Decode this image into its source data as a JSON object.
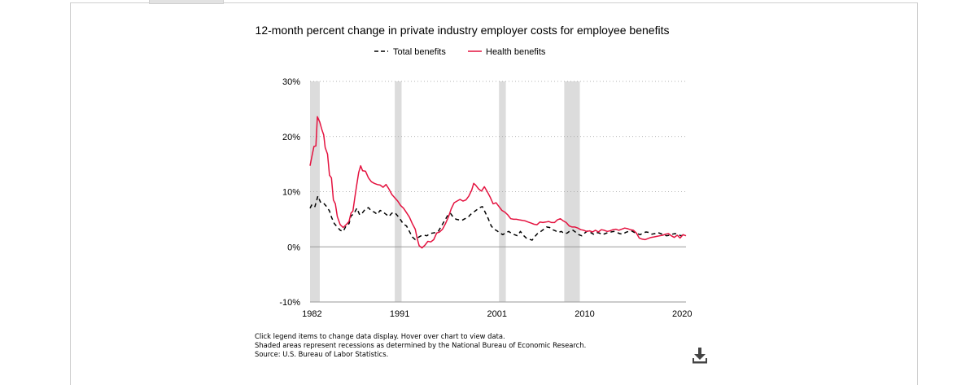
{
  "notes": [
    "Click legend items to change data display. Hover over chart to view data.",
    "Shaded areas represent recessions as determined by the National Bureau of Economic Research.",
    "Source: U.S. Bureau of Labor Statistics."
  ],
  "download": {
    "icon": "download-icon"
  },
  "chart_data": {
    "type": "line",
    "title": "12-month percent change in private industry employer costs for employee benefits",
    "xlabel": "",
    "ylabel": "",
    "xlim": [
      1981.8,
      2020.4
    ],
    "ylim": [
      -10,
      30
    ],
    "yticks": [
      -10,
      0,
      10,
      20,
      30
    ],
    "ytick_labels": [
      "-10%",
      "0%",
      "10%",
      "20%",
      "30%"
    ],
    "xticks": [
      1982,
      1991,
      2001,
      2010,
      2020
    ],
    "xtick_labels": [
      "1982",
      "1991",
      "2001",
      "2010",
      "2020"
    ],
    "grid": "horizontal-dotted",
    "legend_position": "top-center",
    "recessions": [
      [
        1981.8,
        1982.8
      ],
      [
        1990.5,
        1991.2
      ],
      [
        2001.2,
        2001.9
      ],
      [
        2007.9,
        2009.5
      ]
    ],
    "series": [
      {
        "name": "Total benefits",
        "color": "#000000",
        "style": "dashed",
        "points": [
          [
            1981.8,
            7.0
          ],
          [
            1982.0,
            7.7
          ],
          [
            1982.3,
            7.3
          ],
          [
            1982.6,
            9.2
          ],
          [
            1982.9,
            8.0
          ],
          [
            1983.2,
            7.9
          ],
          [
            1983.5,
            7.3
          ],
          [
            1983.8,
            6.5
          ],
          [
            1984.0,
            5.4
          ],
          [
            1984.3,
            4.2
          ],
          [
            1984.6,
            3.6
          ],
          [
            1984.9,
            3.0
          ],
          [
            1985.2,
            2.8
          ],
          [
            1985.5,
            3.8
          ],
          [
            1985.8,
            4.2
          ],
          [
            1986.0,
            5.6
          ],
          [
            1986.3,
            6.0
          ],
          [
            1986.6,
            7.0
          ],
          [
            1986.9,
            5.8
          ],
          [
            1987.2,
            6.2
          ],
          [
            1987.5,
            6.9
          ],
          [
            1987.8,
            7.1
          ],
          [
            1988.1,
            6.5
          ],
          [
            1988.4,
            6.3
          ],
          [
            1988.7,
            5.9
          ],
          [
            1989.0,
            6.6
          ],
          [
            1989.3,
            6.3
          ],
          [
            1989.6,
            5.9
          ],
          [
            1989.9,
            5.5
          ],
          [
            1990.2,
            6.1
          ],
          [
            1990.5,
            6.2
          ],
          [
            1990.8,
            5.6
          ],
          [
            1991.1,
            4.9
          ],
          [
            1991.4,
            4.1
          ],
          [
            1991.7,
            3.8
          ],
          [
            1992.0,
            2.8
          ],
          [
            1992.3,
            1.8
          ],
          [
            1992.6,
            1.3
          ],
          [
            1992.9,
            1.7
          ],
          [
            1993.2,
            2.0
          ],
          [
            1993.5,
            2.1
          ],
          [
            1993.8,
            2.0
          ],
          [
            1994.1,
            2.4
          ],
          [
            1994.4,
            2.5
          ],
          [
            1994.7,
            2.6
          ],
          [
            1995.0,
            2.9
          ],
          [
            1995.3,
            3.8
          ],
          [
            1995.6,
            4.7
          ],
          [
            1995.9,
            5.6
          ],
          [
            1996.2,
            6.1
          ],
          [
            1996.5,
            5.4
          ],
          [
            1996.8,
            5.0
          ],
          [
            1997.1,
            4.9
          ],
          [
            1997.4,
            4.8
          ],
          [
            1997.7,
            5.1
          ],
          [
            1998.0,
            5.3
          ],
          [
            1998.3,
            5.9
          ],
          [
            1998.6,
            6.3
          ],
          [
            1998.9,
            6.7
          ],
          [
            1999.2,
            7.1
          ],
          [
            1999.5,
            7.3
          ],
          [
            1999.8,
            6.2
          ],
          [
            2000.1,
            5.1
          ],
          [
            2000.4,
            3.8
          ],
          [
            2000.7,
            3.2
          ],
          [
            2001.0,
            2.9
          ],
          [
            2001.3,
            2.5
          ],
          [
            2001.6,
            2.2
          ],
          [
            2001.9,
            2.6
          ],
          [
            2002.2,
            2.8
          ],
          [
            2002.5,
            2.4
          ],
          [
            2002.8,
            2.2
          ],
          [
            2003.1,
            2.0
          ],
          [
            2003.4,
            2.8
          ],
          [
            2003.7,
            2.1
          ],
          [
            2004.0,
            1.6
          ],
          [
            2004.3,
            1.4
          ],
          [
            2004.6,
            1.2
          ],
          [
            2004.9,
            1.9
          ],
          [
            2005.2,
            2.5
          ],
          [
            2005.5,
            2.8
          ],
          [
            2005.8,
            3.2
          ],
          [
            2006.1,
            3.6
          ],
          [
            2006.4,
            3.5
          ],
          [
            2006.7,
            3.1
          ],
          [
            2007.0,
            2.9
          ],
          [
            2007.3,
            2.6
          ],
          [
            2007.6,
            2.8
          ],
          [
            2007.9,
            2.4
          ],
          [
            2008.2,
            2.5
          ],
          [
            2008.5,
            2.9
          ],
          [
            2008.8,
            3.0
          ],
          [
            2009.1,
            2.6
          ],
          [
            2009.4,
            2.2
          ],
          [
            2009.7,
            2.0
          ],
          [
            2010.0,
            2.5
          ],
          [
            2010.3,
            2.9
          ],
          [
            2010.6,
            2.6
          ],
          [
            2010.9,
            2.3
          ],
          [
            2011.2,
            2.6
          ],
          [
            2011.5,
            2.5
          ],
          [
            2011.8,
            2.2
          ],
          [
            2012.1,
            2.4
          ],
          [
            2012.4,
            2.6
          ],
          [
            2012.7,
            2.7
          ],
          [
            2013.0,
            2.8
          ],
          [
            2013.3,
            2.6
          ],
          [
            2013.6,
            2.4
          ],
          [
            2013.9,
            2.3
          ],
          [
            2014.2,
            2.6
          ],
          [
            2014.5,
            2.8
          ],
          [
            2014.8,
            2.9
          ],
          [
            2015.1,
            2.6
          ],
          [
            2015.4,
            2.4
          ],
          [
            2015.7,
            2.2
          ],
          [
            2016.0,
            2.5
          ],
          [
            2016.3,
            2.7
          ],
          [
            2016.6,
            2.6
          ],
          [
            2016.9,
            2.3
          ],
          [
            2017.2,
            2.4
          ],
          [
            2017.5,
            2.6
          ],
          [
            2017.8,
            2.4
          ],
          [
            2018.1,
            2.2
          ],
          [
            2018.4,
            2.0
          ],
          [
            2018.7,
            2.1
          ],
          [
            2019.0,
            2.3
          ],
          [
            2019.3,
            2.4
          ],
          [
            2019.6,
            2.2
          ],
          [
            2019.9,
            2.0
          ],
          [
            2020.2,
            2.2
          ],
          [
            2020.4,
            2.1
          ]
        ]
      },
      {
        "name": "Health benefits",
        "color": "#e4123f",
        "style": "solid",
        "points": [
          [
            1981.8,
            14.7
          ],
          [
            1982.0,
            16.5
          ],
          [
            1982.2,
            18.2
          ],
          [
            1982.4,
            18.3
          ],
          [
            1982.55,
            23.6
          ],
          [
            1982.8,
            22.6
          ],
          [
            1983.0,
            21.3
          ],
          [
            1983.2,
            20.3
          ],
          [
            1983.35,
            18.0
          ],
          [
            1983.6,
            16.8
          ],
          [
            1983.8,
            13.0
          ],
          [
            1984.0,
            12.5
          ],
          [
            1984.2,
            8.5
          ],
          [
            1984.4,
            7.8
          ],
          [
            1984.6,
            5.5
          ],
          [
            1984.9,
            4.0
          ],
          [
            1985.2,
            3.5
          ],
          [
            1985.5,
            4.0
          ],
          [
            1985.8,
            4.6
          ],
          [
            1986.0,
            6.1
          ],
          [
            1986.2,
            6.5
          ],
          [
            1986.4,
            9.0
          ],
          [
            1986.55,
            10.8
          ],
          [
            1986.8,
            13.5
          ],
          [
            1987.0,
            14.7
          ],
          [
            1987.2,
            13.8
          ],
          [
            1987.5,
            13.7
          ],
          [
            1987.8,
            12.5
          ],
          [
            1988.1,
            11.8
          ],
          [
            1988.4,
            11.5
          ],
          [
            1988.7,
            11.3
          ],
          [
            1989.0,
            11.2
          ],
          [
            1989.3,
            10.8
          ],
          [
            1989.6,
            11.3
          ],
          [
            1989.9,
            10.5
          ],
          [
            1990.2,
            9.5
          ],
          [
            1990.5,
            8.9
          ],
          [
            1990.8,
            8.3
          ],
          [
            1991.1,
            7.5
          ],
          [
            1991.4,
            7.0
          ],
          [
            1991.7,
            6.2
          ],
          [
            1992.0,
            5.4
          ],
          [
            1992.3,
            4.2
          ],
          [
            1992.6,
            3.2
          ],
          [
            1992.8,
            1.5
          ],
          [
            1993.0,
            0.2
          ],
          [
            1993.3,
            -0.2
          ],
          [
            1993.6,
            0.3
          ],
          [
            1993.9,
            1.0
          ],
          [
            1994.2,
            0.9
          ],
          [
            1994.5,
            1.3
          ],
          [
            1994.8,
            2.5
          ],
          [
            1995.1,
            2.7
          ],
          [
            1995.4,
            3.2
          ],
          [
            1995.7,
            4.2
          ],
          [
            1996.0,
            5.4
          ],
          [
            1996.3,
            6.9
          ],
          [
            1996.6,
            8.0
          ],
          [
            1996.9,
            8.3
          ],
          [
            1997.2,
            8.6
          ],
          [
            1997.5,
            8.3
          ],
          [
            1997.8,
            8.5
          ],
          [
            1998.1,
            9.2
          ],
          [
            1998.4,
            10.3
          ],
          [
            1998.6,
            11.5
          ],
          [
            1998.8,
            11.2
          ],
          [
            1999.1,
            10.5
          ],
          [
            1999.4,
            10.1
          ],
          [
            1999.7,
            10.9
          ],
          [
            2000.0,
            10.0
          ],
          [
            2000.3,
            9.0
          ],
          [
            2000.6,
            7.8
          ],
          [
            2000.9,
            8.0
          ],
          [
            2001.2,
            7.3
          ],
          [
            2001.5,
            6.6
          ],
          [
            2001.8,
            6.3
          ],
          [
            2002.1,
            5.8
          ],
          [
            2002.4,
            5.1
          ],
          [
            2002.7,
            5.0
          ],
          [
            2003.0,
            5.0
          ],
          [
            2003.3,
            4.9
          ],
          [
            2003.6,
            4.8
          ],
          [
            2003.9,
            4.7
          ],
          [
            2004.2,
            4.5
          ],
          [
            2004.5,
            4.3
          ],
          [
            2004.8,
            4.1
          ],
          [
            2005.1,
            4.0
          ],
          [
            2005.4,
            4.5
          ],
          [
            2005.7,
            4.4
          ],
          [
            2006.0,
            4.5
          ],
          [
            2006.3,
            4.6
          ],
          [
            2006.6,
            4.4
          ],
          [
            2006.9,
            4.4
          ],
          [
            2007.2,
            4.9
          ],
          [
            2007.5,
            5.1
          ],
          [
            2007.8,
            4.7
          ],
          [
            2008.1,
            4.4
          ],
          [
            2008.4,
            3.8
          ],
          [
            2008.7,
            3.6
          ],
          [
            2009.0,
            3.6
          ],
          [
            2009.3,
            3.4
          ],
          [
            2009.6,
            3.1
          ],
          [
            2009.9,
            3.0
          ],
          [
            2010.2,
            2.8
          ],
          [
            2010.5,
            2.9
          ],
          [
            2010.8,
            2.7
          ],
          [
            2011.1,
            3.0
          ],
          [
            2011.4,
            2.7
          ],
          [
            2011.7,
            3.1
          ],
          [
            2012.0,
            3.0
          ],
          [
            2012.3,
            2.8
          ],
          [
            2012.6,
            2.9
          ],
          [
            2012.9,
            3.1
          ],
          [
            2013.2,
            3.2
          ],
          [
            2013.5,
            3.0
          ],
          [
            2013.8,
            3.2
          ],
          [
            2014.1,
            3.4
          ],
          [
            2014.4,
            3.3
          ],
          [
            2014.7,
            3.1
          ],
          [
            2015.0,
            3.0
          ],
          [
            2015.3,
            2.5
          ],
          [
            2015.6,
            1.6
          ],
          [
            2015.9,
            1.4
          ],
          [
            2016.2,
            1.3
          ],
          [
            2016.5,
            1.5
          ],
          [
            2016.8,
            1.7
          ],
          [
            2017.1,
            1.8
          ],
          [
            2017.4,
            1.9
          ],
          [
            2017.7,
            2.0
          ],
          [
            2018.0,
            2.1
          ],
          [
            2018.3,
            2.3
          ],
          [
            2018.6,
            2.4
          ],
          [
            2018.9,
            2.0
          ],
          [
            2019.2,
            1.7
          ],
          [
            2019.5,
            2.1
          ],
          [
            2019.8,
            1.6
          ],
          [
            2020.1,
            2.2
          ],
          [
            2020.4,
            2.0
          ]
        ]
      }
    ]
  }
}
